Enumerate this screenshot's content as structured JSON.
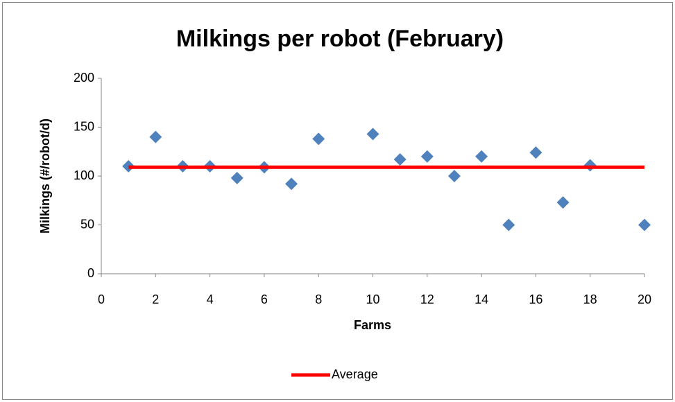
{
  "chart_data": {
    "type": "scatter",
    "title": "Milkings per robot (February)",
    "xlabel": "Farms",
    "ylabel": "Milkings (#/robot/d)",
    "xlim": [
      0,
      20
    ],
    "xticks": [
      0,
      2,
      4,
      6,
      8,
      10,
      12,
      14,
      16,
      18,
      20
    ],
    "ylim": [
      0,
      200
    ],
    "yticks": [
      0,
      50,
      100,
      150,
      200
    ],
    "grid": false,
    "legend": "bottom",
    "series": [
      {
        "mode": "markers",
        "color": "#4f81bd",
        "x": [
          1,
          2,
          3,
          4,
          5,
          6,
          7,
          8,
          10,
          11,
          12,
          13,
          14,
          15,
          16,
          17,
          18,
          20
        ],
        "values": [
          110,
          140,
          110,
          110,
          98,
          109,
          92,
          138,
          143,
          117,
          120,
          100,
          120,
          50,
          124,
          73,
          111,
          50
        ]
      },
      {
        "name": "Average",
        "mode": "lines",
        "color": "#ff0000",
        "x": [
          1,
          20
        ],
        "values": [
          109,
          109
        ]
      }
    ]
  }
}
